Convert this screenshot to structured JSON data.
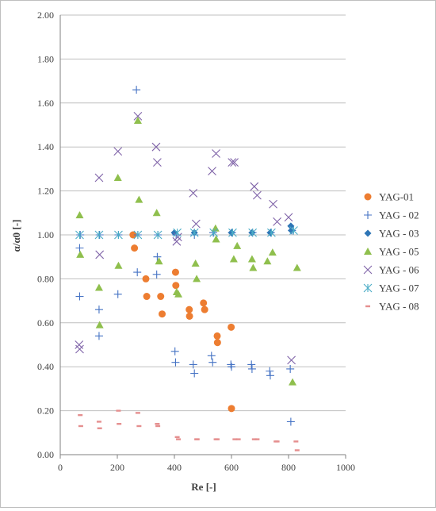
{
  "chart_data": {
    "type": "scatter",
    "xlabel": "Re [-]",
    "ylabel": "α/α0 [-]",
    "xlim": [
      0,
      1000
    ],
    "ylim": [
      0,
      2
    ],
    "x_ticks": [
      "0",
      "200",
      "400",
      "600",
      "800",
      "1000"
    ],
    "y_ticks": [
      "0.00",
      "0.20",
      "0.40",
      "0.60",
      "0.80",
      "1.00",
      "1.20",
      "1.40",
      "1.60",
      "1.80",
      "2.00"
    ],
    "grid": "horizontal",
    "legend_position": "right",
    "series": [
      {
        "name": "YAG-01",
        "marker": "circle",
        "color": "#ed7d31",
        "x": [
          255,
          260,
          300,
          303,
          352,
          357,
          404,
          405,
          452,
          453,
          502,
          506,
          550,
          551,
          599,
          600
        ],
        "y": [
          1.0,
          0.94,
          0.8,
          0.72,
          0.72,
          0.64,
          0.83,
          0.77,
          0.66,
          0.63,
          0.69,
          0.66,
          0.54,
          0.51,
          0.58,
          0.21
        ]
      },
      {
        "name": "YAG - 02",
        "marker": "plus",
        "color": "#4472c4",
        "x": [
          68,
          68,
          70,
          136,
          136,
          138,
          202,
          204,
          267,
          270,
          272,
          338,
          340,
          342,
          402,
          404,
          406,
          466,
          470,
          470,
          530,
          534,
          536,
          598,
          600,
          602,
          670,
          672,
          674,
          734,
          736,
          738,
          806,
          808,
          812
        ],
        "y": [
          0.72,
          0.94,
          1.0,
          0.54,
          0.66,
          1.0,
          0.73,
          1.0,
          1.66,
          0.83,
          1.0,
          0.82,
          0.9,
          1.0,
          0.47,
          0.42,
          1.0,
          0.41,
          0.37,
          1.0,
          0.45,
          0.42,
          1.01,
          0.41,
          0.4,
          1.01,
          0.41,
          0.39,
          1.01,
          0.38,
          0.36,
          1.01,
          0.39,
          0.15,
          1.02
        ]
      },
      {
        "name": "YAG - 03",
        "marker": "diamond",
        "color": "#2e75b6",
        "x": [
          400,
          470,
          600,
          672,
          736,
          808,
          810
        ],
        "y": [
          1.01,
          1.01,
          1.01,
          1.01,
          1.01,
          1.04,
          1.02
        ]
      },
      {
        "name": "YAG - 05",
        "marker": "triangle",
        "color": "#8fbf4d",
        "x": [
          68,
          70,
          136,
          138,
          202,
          204,
          272,
          276,
          338,
          346,
          408,
          414,
          474,
          478,
          544,
          546,
          608,
          620,
          672,
          676,
          726,
          744,
          814,
          830
        ],
        "y": [
          1.09,
          0.91,
          0.76,
          0.59,
          1.26,
          0.86,
          1.52,
          1.16,
          1.1,
          0.88,
          0.74,
          0.73,
          0.87,
          0.8,
          1.03,
          0.98,
          0.89,
          0.95,
          0.89,
          0.85,
          0.88,
          0.92,
          0.33,
          0.85
        ]
      },
      {
        "name": "YAG - 06",
        "marker": "x",
        "color": "#7f63a8",
        "x": [
          66,
          68,
          136,
          138,
          202,
          272,
          336,
          340,
          408,
          412,
          466,
          476,
          532,
          546,
          602,
          610,
          680,
          690,
          746,
          760,
          800,
          810
        ],
        "y": [
          0.5,
          0.48,
          1.26,
          0.91,
          1.38,
          1.54,
          1.4,
          1.33,
          0.97,
          0.99,
          1.19,
          1.05,
          1.29,
          1.37,
          1.33,
          1.33,
          1.22,
          1.18,
          1.14,
          1.06,
          1.08,
          0.43
        ]
      },
      {
        "name": "YAG - 07",
        "marker": "asterisk",
        "color": "#4bacc6",
        "x": [
          68,
          136,
          204,
          272,
          342,
          410,
          470,
          538,
          604,
          674,
          740,
          818
        ],
        "y": [
          1.0,
          1.0,
          1.0,
          1.0,
          1.0,
          1.01,
          1.01,
          1.01,
          1.01,
          1.01,
          1.01,
          1.02
        ]
      },
      {
        "name": "YAG - 08",
        "marker": "dash",
        "color": "#e58f8f",
        "x": [
          70,
          72,
          136,
          138,
          204,
          206,
          272,
          276,
          340,
          342,
          410,
          414,
          478,
          480,
          546,
          550,
          612,
          624,
          680,
          690,
          756,
          760,
          826,
          830
        ],
        "y": [
          0.18,
          0.13,
          0.15,
          0.12,
          0.2,
          0.14,
          0.19,
          0.13,
          0.14,
          0.13,
          0.08,
          0.07,
          0.07,
          0.07,
          0.07,
          0.07,
          0.07,
          0.07,
          0.07,
          0.07,
          0.06,
          0.06,
          0.06,
          0.02
        ]
      }
    ]
  }
}
